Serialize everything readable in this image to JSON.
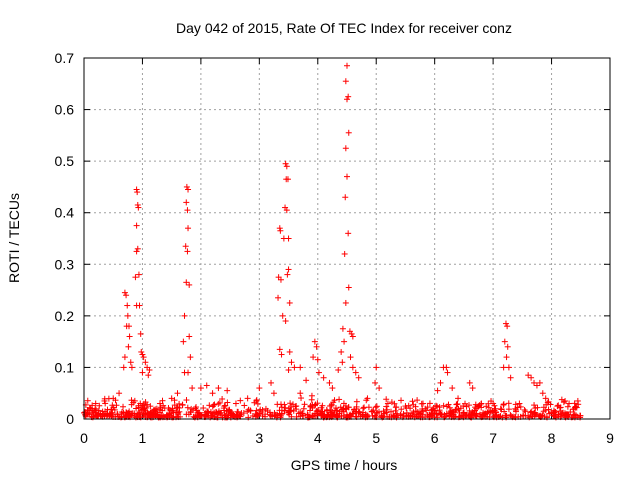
{
  "chart_data": {
    "type": "scatter",
    "title": "Day 042 of 2015, Rate Of TEC Index for receiver conz",
    "xlabel": "GPS time / hours",
    "ylabel": "ROTI / TECUs",
    "xlim": [
      0,
      9
    ],
    "ylim": [
      0,
      0.7
    ],
    "xticks": [
      "0",
      "1",
      "2",
      "3",
      "4",
      "5",
      "6",
      "7",
      "8",
      "9"
    ],
    "yticks": [
      "0",
      "0.1",
      "0.2",
      "0.3",
      "0.4",
      "0.5",
      "0.6",
      "0.7"
    ],
    "grid": true,
    "marker": "+",
    "color": "#ff0000",
    "series": [
      {
        "points": [
          [
            0.7,
            0.245
          ],
          [
            0.72,
            0.24
          ],
          [
            0.74,
            0.22
          ],
          [
            0.75,
            0.2
          ],
          [
            0.73,
            0.18
          ],
          [
            0.77,
            0.18
          ],
          [
            0.78,
            0.16
          ],
          [
            0.7,
            0.12
          ],
          [
            0.76,
            0.14
          ],
          [
            0.8,
            0.11
          ],
          [
            0.82,
            0.1
          ],
          [
            0.68,
            0.1
          ],
          [
            0.9,
            0.445
          ],
          [
            0.91,
            0.44
          ],
          [
            0.92,
            0.415
          ],
          [
            0.93,
            0.41
          ],
          [
            0.9,
            0.375
          ],
          [
            0.92,
            0.33
          ],
          [
            0.9,
            0.325
          ],
          [
            0.88,
            0.275
          ],
          [
            0.94,
            0.28
          ],
          [
            0.9,
            0.22
          ],
          [
            0.95,
            0.22
          ],
          [
            0.97,
            0.165
          ],
          [
            0.98,
            0.13
          ],
          [
            1.0,
            0.125
          ],
          [
            1.02,
            0.12
          ],
          [
            1.05,
            0.11
          ],
          [
            1.08,
            0.1
          ],
          [
            1.12,
            0.095
          ],
          [
            1.0,
            0.09
          ],
          [
            1.1,
            0.085
          ],
          [
            1.76,
            0.45
          ],
          [
            1.78,
            0.445
          ],
          [
            1.75,
            0.42
          ],
          [
            1.77,
            0.405
          ],
          [
            1.78,
            0.37
          ],
          [
            1.74,
            0.335
          ],
          [
            1.77,
            0.325
          ],
          [
            1.75,
            0.265
          ],
          [
            1.8,
            0.26
          ],
          [
            1.72,
            0.2
          ],
          [
            1.8,
            0.16
          ],
          [
            1.7,
            0.15
          ],
          [
            1.82,
            0.12
          ],
          [
            1.78,
            0.09
          ],
          [
            1.72,
            0.09
          ],
          [
            1.85,
            0.06
          ],
          [
            3.35,
            0.37
          ],
          [
            3.36,
            0.365
          ],
          [
            3.33,
            0.275
          ],
          [
            3.37,
            0.27
          ],
          [
            3.32,
            0.235
          ],
          [
            3.4,
            0.2
          ],
          [
            3.45,
            0.19
          ],
          [
            3.42,
            0.35
          ],
          [
            3.5,
            0.35
          ],
          [
            3.44,
            0.41
          ],
          [
            3.47,
            0.405
          ],
          [
            3.45,
            0.495
          ],
          [
            3.47,
            0.49
          ],
          [
            3.46,
            0.465
          ],
          [
            3.49,
            0.465
          ],
          [
            3.5,
            0.29
          ],
          [
            3.48,
            0.28
          ],
          [
            3.52,
            0.225
          ],
          [
            3.35,
            0.135
          ],
          [
            3.38,
            0.125
          ],
          [
            3.52,
            0.13
          ],
          [
            3.55,
            0.11
          ],
          [
            3.6,
            0.1
          ],
          [
            3.5,
            0.095
          ],
          [
            4.5,
            0.685
          ],
          [
            4.48,
            0.655
          ],
          [
            4.52,
            0.625
          ],
          [
            4.5,
            0.62
          ],
          [
            4.48,
            0.525
          ],
          [
            4.53,
            0.555
          ],
          [
            4.5,
            0.47
          ],
          [
            4.47,
            0.43
          ],
          [
            4.52,
            0.36
          ],
          [
            4.46,
            0.32
          ],
          [
            4.53,
            0.255
          ],
          [
            4.48,
            0.225
          ],
          [
            4.43,
            0.175
          ],
          [
            4.55,
            0.17
          ],
          [
            4.58,
            0.165
          ],
          [
            4.6,
            0.16
          ],
          [
            4.45,
            0.15
          ],
          [
            4.4,
            0.13
          ],
          [
            4.42,
            0.11
          ],
          [
            4.56,
            0.12
          ],
          [
            4.6,
            0.1
          ],
          [
            4.65,
            0.09
          ],
          [
            4.7,
            0.08
          ],
          [
            4.35,
            0.095
          ],
          [
            3.95,
            0.15
          ],
          [
            3.98,
            0.14
          ],
          [
            3.92,
            0.12
          ],
          [
            4.0,
            0.115
          ],
          [
            4.02,
            0.09
          ],
          [
            4.1,
            0.08
          ],
          [
            4.2,
            0.07
          ],
          [
            3.7,
            0.1
          ],
          [
            3.8,
            0.075
          ],
          [
            5.0,
            0.1
          ],
          [
            4.98,
            0.07
          ],
          [
            5.05,
            0.06
          ],
          [
            7.22,
            0.185
          ],
          [
            7.24,
            0.18
          ],
          [
            7.2,
            0.15
          ],
          [
            7.25,
            0.14
          ],
          [
            7.23,
            0.12
          ],
          [
            7.18,
            0.1
          ],
          [
            7.27,
            0.1
          ],
          [
            7.3,
            0.08
          ],
          [
            6.15,
            0.1
          ],
          [
            6.2,
            0.1
          ],
          [
            6.22,
            0.09
          ],
          [
            6.1,
            0.07
          ],
          [
            6.05,
            0.055
          ],
          [
            6.3,
            0.06
          ],
          [
            6.6,
            0.07
          ],
          [
            6.65,
            0.06
          ],
          [
            7.6,
            0.085
          ],
          [
            7.65,
            0.08
          ],
          [
            7.7,
            0.07
          ],
          [
            7.75,
            0.065
          ],
          [
            7.8,
            0.07
          ],
          [
            7.85,
            0.05
          ],
          [
            7.9,
            0.04
          ],
          [
            0.2,
            0.03
          ],
          [
            0.35,
            0.035
          ],
          [
            0.5,
            0.04
          ],
          [
            0.6,
            0.05
          ],
          [
            1.3,
            0.03
          ],
          [
            1.5,
            0.04
          ],
          [
            1.6,
            0.05
          ],
          [
            2.0,
            0.06
          ],
          [
            2.1,
            0.065
          ],
          [
            2.2,
            0.05
          ],
          [
            2.3,
            0.06
          ],
          [
            2.45,
            0.055
          ],
          [
            2.6,
            0.03
          ],
          [
            2.8,
            0.04
          ],
          [
            3.0,
            0.06
          ],
          [
            3.2,
            0.07
          ],
          [
            3.25,
            0.05
          ],
          [
            3.7,
            0.05
          ],
          [
            3.9,
            0.045
          ],
          [
            4.25,
            0.06
          ],
          [
            4.85,
            0.04
          ],
          [
            5.2,
            0.03
          ],
          [
            5.5,
            0.025
          ],
          [
            5.8,
            0.03
          ],
          [
            6.4,
            0.04
          ],
          [
            6.8,
            0.03
          ],
          [
            7.0,
            0.03
          ],
          [
            7.45,
            0.03
          ],
          [
            8.1,
            0.025
          ],
          [
            8.3,
            0.03
          ],
          [
            8.45,
            0.035
          ]
        ]
      }
    ]
  }
}
